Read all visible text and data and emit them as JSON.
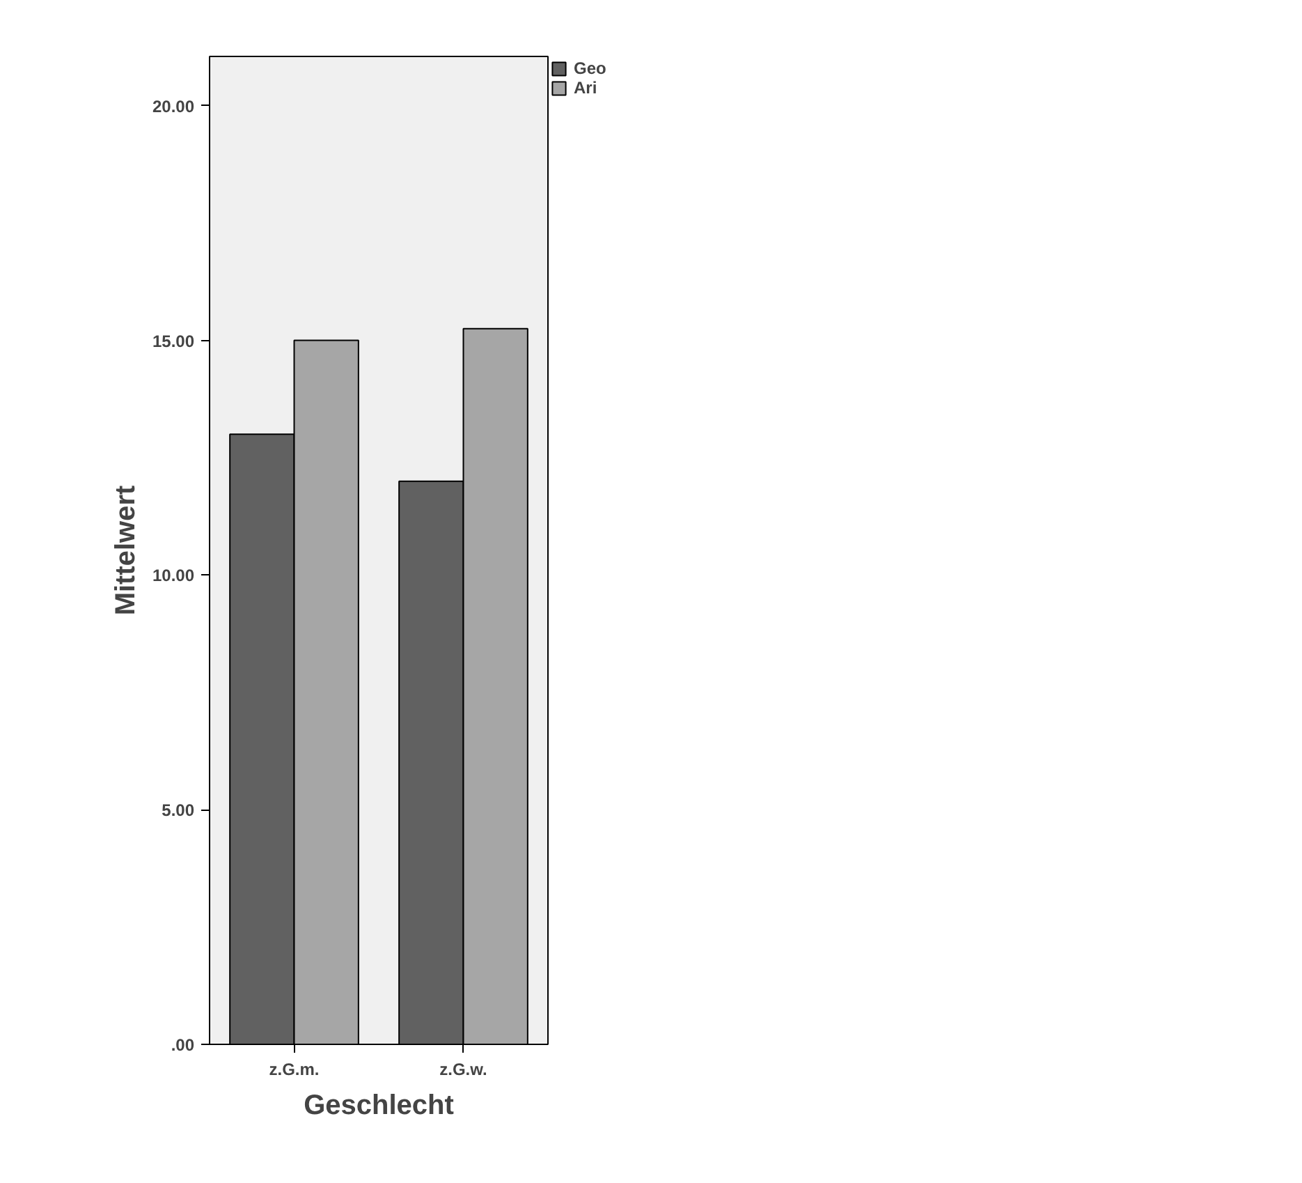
{
  "chart_data": {
    "type": "bar",
    "xlabel": "Geschlecht",
    "ylabel": "Mittelwert",
    "categories": [
      "z.G.m.",
      "z.G.w."
    ],
    "series": [
      {
        "name": "Geo",
        "color": "#616161",
        "values": [
          13,
          12
        ]
      },
      {
        "name": "Ari",
        "color": "#a6a6a6",
        "values": [
          15,
          15.25
        ]
      }
    ],
    "ylim": [
      0,
      21.05
    ],
    "yticks": [
      {
        "value": 0,
        "label": ".00"
      },
      {
        "value": 5,
        "label": "5.00"
      },
      {
        "value": 10,
        "label": "10.00"
      },
      {
        "value": 15,
        "label": "15.00"
      },
      {
        "value": 20,
        "label": "20.00"
      }
    ],
    "grid": false,
    "legend": "top right"
  }
}
